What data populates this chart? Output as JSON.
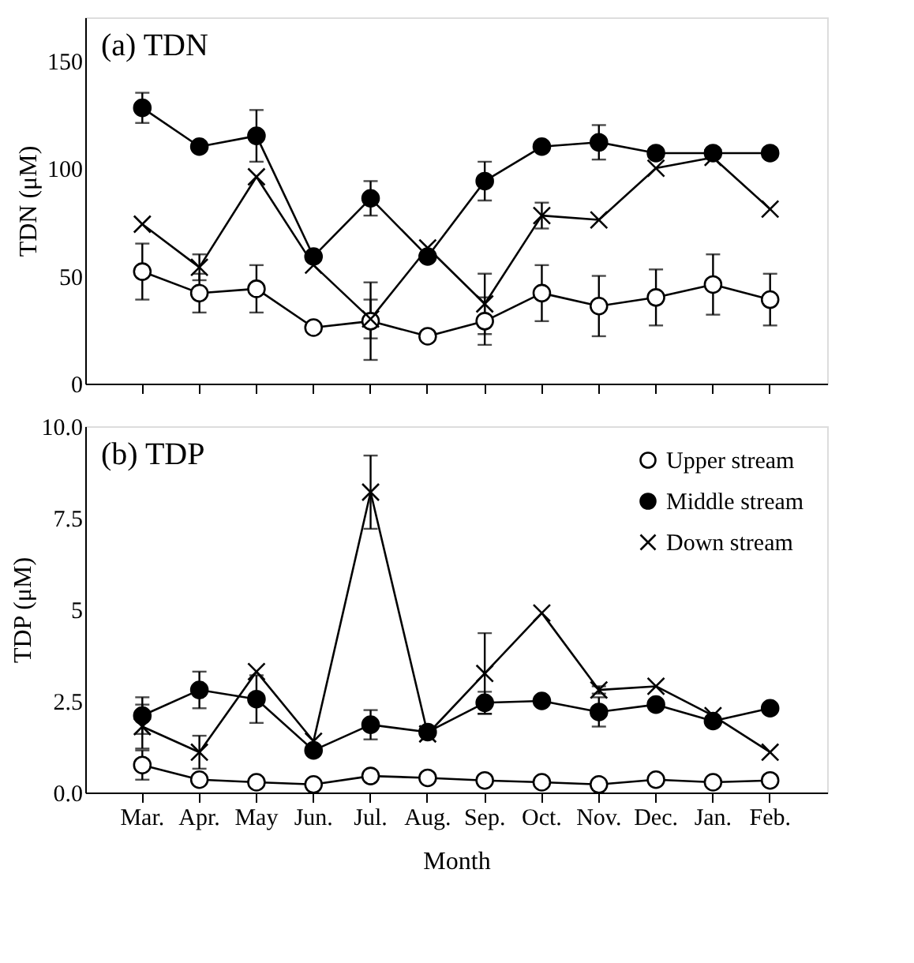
{
  "chart_data": [
    {
      "type": "line",
      "title": "(a) TDN",
      "ylabel": "TDN (μM)",
      "categories": [
        null,
        null,
        null,
        null,
        null,
        null,
        null,
        null,
        null,
        null,
        null,
        null
      ],
      "ylim": [
        0,
        170
      ],
      "yticks": [
        0,
        50,
        100,
        150
      ],
      "tick_labels": "y",
      "grid": false,
      "legend": false,
      "series": [
        {
          "color": "#000000",
          "marker": "circle-open",
          "values": [
            52,
            42,
            44,
            26,
            29,
            22,
            29,
            42,
            36,
            40,
            46,
            39
          ],
          "errors": [
            13,
            9,
            11,
            null,
            18,
            null,
            11,
            13,
            14,
            13,
            14,
            12
          ]
        },
        {
          "color": "#000000",
          "marker": "circle",
          "values": [
            128,
            110,
            115,
            59,
            86,
            59,
            94,
            110,
            112,
            107,
            107,
            107
          ],
          "errors": [
            7,
            null,
            12,
            null,
            8,
            null,
            9,
            null,
            8,
            null,
            null,
            null
          ]
        },
        {
          "color": "#000000",
          "marker": "cross",
          "values": [
            74,
            54,
            96,
            55,
            30,
            63,
            37,
            78,
            76,
            100,
            105,
            81
          ],
          "errors": [
            null,
            6,
            null,
            null,
            9,
            null,
            14,
            6,
            null,
            null,
            null,
            null
          ]
        }
      ]
    },
    {
      "type": "line",
      "title": "(b) TDP",
      "ylabel": "TDP (μM)",
      "xlabel": "Month",
      "categories": [
        "Mar.",
        "Apr.",
        "May",
        "Jun.",
        "Jul.",
        "Aug.",
        "Sep.",
        "Oct.",
        "Nov.",
        "Dec.",
        "Jan.",
        "Feb."
      ],
      "ylim": [
        0,
        10
      ],
      "yticks": [
        {
          "value": 0,
          "label": "0.0"
        },
        2.5,
        5,
        7.5,
        {
          "value": 10,
          "label": "10.0"
        }
      ],
      "grid": false,
      "legend": "top right",
      "series": [
        {
          "name": "Upper stream",
          "color": "#000000",
          "marker": "circle-open",
          "values": [
            0.75,
            0.35,
            0.28,
            0.22,
            0.45,
            0.4,
            0.33,
            0.28,
            0.22,
            0.35,
            0.28,
            0.33
          ],
          "errors": [
            0.4,
            null,
            null,
            null,
            null,
            null,
            null,
            null,
            null,
            null,
            null,
            null
          ]
        },
        {
          "name": "Middle stream",
          "color": "#000000",
          "marker": "circle",
          "values": [
            2.1,
            2.8,
            2.55,
            1.15,
            1.85,
            1.65,
            2.45,
            2.5,
            2.2,
            2.4,
            1.95,
            2.3
          ],
          "errors": [
            0.5,
            0.5,
            0.65,
            null,
            0.4,
            null,
            0.3,
            null,
            0.4,
            null,
            null,
            null
          ]
        },
        {
          "name": "Down stream",
          "color": "#000000",
          "marker": "cross",
          "values": [
            1.8,
            1.1,
            3.3,
            1.4,
            8.2,
            1.6,
            3.25,
            4.9,
            2.8,
            2.9,
            2.1,
            1.1
          ],
          "errors": [
            0.6,
            0.45,
            null,
            null,
            1.0,
            null,
            1.1,
            null,
            0.1,
            null,
            null,
            null
          ]
        }
      ]
    }
  ]
}
